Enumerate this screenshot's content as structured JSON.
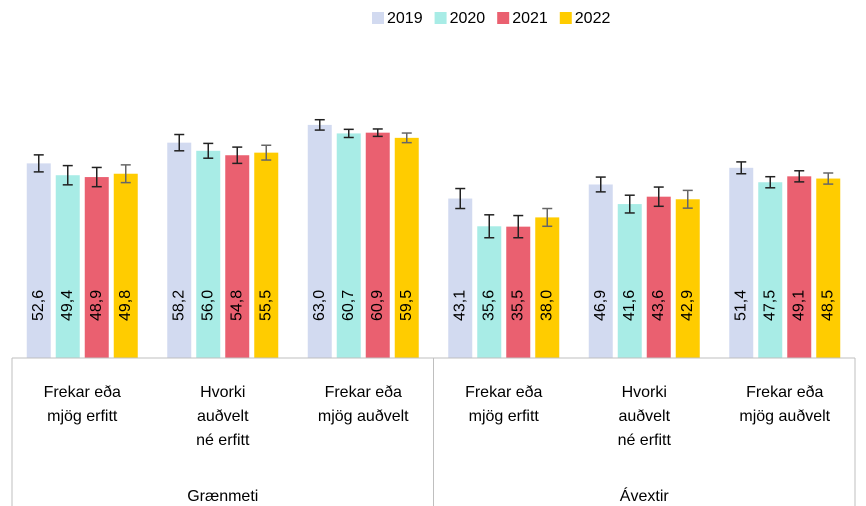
{
  "chart_data": {
    "type": "bar",
    "categories": [
      [
        "Frekar eða",
        "mjög erfitt"
      ],
      [
        "Hvorki",
        "auðvelt",
        "né erfitt"
      ],
      [
        "Frekar eða",
        "mjög auðvelt"
      ],
      [
        "Frekar eða",
        "mjög erfitt"
      ],
      [
        "Hvorki",
        "auðvelt",
        "né erfitt"
      ],
      [
        "Frekar eða",
        "mjög auðvelt"
      ]
    ],
    "group_labels": [
      "Grænmeti",
      "Ávextir"
    ],
    "ylim": [
      0,
      70
    ],
    "legend": "top",
    "series": [
      {
        "name": "2019",
        "color": "#d2daf0",
        "values": [
          52.6,
          58.2,
          63.0,
          43.1,
          46.9,
          51.4
        ],
        "value_labels": [
          "52,6",
          "58,2",
          "63,0",
          "43,1",
          "46,9",
          "51,4"
        ],
        "errors": [
          2.3,
          2.2,
          1.4,
          2.7,
          2.0,
          1.6
        ]
      },
      {
        "name": "2020",
        "color": "#a8ece6",
        "values": [
          49.4,
          56.0,
          60.7,
          35.6,
          41.6,
          47.5
        ],
        "value_labels": [
          "49,4",
          "56,0",
          "60,7",
          "35,6",
          "41,6",
          "47,5"
        ],
        "errors": [
          2.6,
          2.0,
          1.1,
          3.1,
          2.4,
          1.5
        ]
      },
      {
        "name": "2021",
        "color": "#ea6070",
        "values": [
          48.9,
          54.8,
          60.9,
          35.5,
          43.6,
          49.1
        ],
        "value_labels": [
          "48,9",
          "54,8",
          "60,9",
          "35,5",
          "43,6",
          "49,1"
        ],
        "errors": [
          2.6,
          2.2,
          1.0,
          3.0,
          2.6,
          1.5
        ]
      },
      {
        "name": "2022",
        "color": "#ffcc00",
        "values": [
          49.8,
          55.5,
          59.5,
          38.0,
          42.9,
          48.5
        ],
        "value_labels": [
          "49,8",
          "55,5",
          "59,5",
          "38,0",
          "42,9",
          "48,5"
        ],
        "errors": [
          2.4,
          2.0,
          1.3,
          2.4,
          2.4,
          1.5
        ]
      }
    ]
  }
}
